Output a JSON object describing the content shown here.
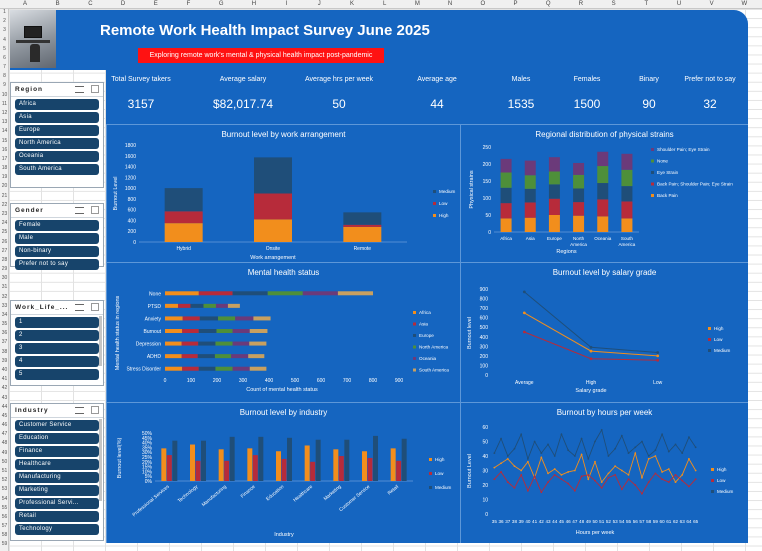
{
  "sheet": {
    "columns": [
      "A",
      "B",
      "C",
      "D",
      "E",
      "F",
      "G",
      "H",
      "I",
      "J",
      "K",
      "L",
      "M",
      "N",
      "O",
      "P",
      "Q",
      "R",
      "S",
      "T",
      "U",
      "V",
      "W"
    ]
  },
  "header": {
    "title": "Remote Work Health Impact Survey June 2025",
    "subtitle": "Exploring remote work's mental & physical health impact post-pandemic"
  },
  "kpis": [
    {
      "label": "Total Survey takers",
      "value": "3157"
    },
    {
      "label": "Average salary",
      "value": "$82,017.74"
    },
    {
      "label": "Average hrs per week",
      "value": "50"
    },
    {
      "label": "Average age",
      "value": "44"
    },
    {
      "label": "Males",
      "value": "1535"
    },
    {
      "label": "Females",
      "value": "1500"
    },
    {
      "label": "Binary",
      "value": "90"
    },
    {
      "label": "Prefer not to say",
      "value": "32"
    }
  ],
  "slicers": [
    {
      "title": "Region",
      "items": [
        "Africa",
        "Asia",
        "Europe",
        "North America",
        "Oceania",
        "South America"
      ]
    },
    {
      "title": "Gender",
      "items": [
        "Female",
        "Male",
        "Non-binary",
        "Prefer not to say"
      ]
    },
    {
      "title": "Work_Life_...",
      "items": [
        "1",
        "2",
        "3",
        "4",
        "5"
      ]
    },
    {
      "title": "Industry",
      "items": [
        "Customer Service",
        "Education",
        "Finance",
        "Healthcare",
        "Manufacturing",
        "Marketing",
        "Professional Servi...",
        "Retail",
        "Technology"
      ]
    }
  ],
  "colors": {
    "high": "#f28e1c",
    "low": "#b72b3a",
    "medium": "#1f4e79",
    "bg": "#1565c0",
    "banner_tag": "#ff1212"
  },
  "chart_data": [
    {
      "id": "burnout_arrangement",
      "type": "bar",
      "title": "Burnout level by work arrangement",
      "xlabel": "Work arrangement",
      "ylabel": "Burnout Level",
      "categories": [
        "Hybrid",
        "Onsite",
        "Remote"
      ],
      "series": [
        {
          "name": "High",
          "values": [
            350,
            420,
            280
          ]
        },
        {
          "name": "Low",
          "values": [
            220,
            480,
            40
          ]
        },
        {
          "name": "Medium",
          "values": [
            430,
            670,
            230
          ]
        }
      ],
      "ylim": [
        0,
        1800
      ],
      "yticks": [
        "0",
        "200",
        "400",
        "600",
        "800",
        "1000",
        "1200",
        "1400",
        "1600",
        "1800"
      ],
      "stacked": true,
      "legend": "right"
    },
    {
      "id": "regional_strains",
      "type": "bar",
      "title": "Regional distribution of physical strains",
      "xlabel": "Regions",
      "ylabel": "Physical strains",
      "categories": [
        "Africa",
        "Asia",
        "Europe",
        "North America",
        "Oceania",
        "South America"
      ],
      "series": [
        {
          "name": "Back Pain",
          "values": [
            40,
            42,
            50,
            48,
            46,
            40
          ],
          "color": "#f28e1c"
        },
        {
          "name": "Back Pain; Shoulder Pain; Eye Strain",
          "values": [
            45,
            45,
            48,
            40,
            50,
            50
          ],
          "color": "#b72b3a"
        },
        {
          "name": "Eye Strain",
          "values": [
            45,
            40,
            42,
            40,
            48,
            45
          ],
          "color": "#1f4e79"
        },
        {
          "name": "None",
          "values": [
            45,
            40,
            38,
            40,
            50,
            48
          ],
          "color": "#4e8f3a"
        },
        {
          "name": "Shoulder Pain; Eye Strain",
          "values": [
            40,
            43,
            42,
            35,
            42,
            47
          ],
          "color": "#6b3a7a"
        }
      ],
      "ylim": [
        0,
        250
      ],
      "yticks": [
        "0",
        "50",
        "100",
        "150",
        "200",
        "250"
      ],
      "stacked": true,
      "legend": "right",
      "legend_order": [
        "Shoulder Pain; Eye Strain",
        "None",
        "Eye Strain",
        "Back Pain; Shoulder Pain; Eye Strain",
        "Back Pain"
      ]
    },
    {
      "id": "mental_health",
      "type": "bar",
      "title": "Mental health status",
      "xlabel": "Count of mental health status",
      "ylabel": "Mental health status in regions",
      "categories": [
        "None",
        "PTSD",
        "Anxiety",
        "Burnout",
        "Depression",
        "ADHD",
        "Stress Disorder"
      ],
      "series": [
        {
          "name": "Africa",
          "values": [
            130,
            50,
            68,
            66,
            64,
            64,
            66
          ],
          "color": "#f28e1c"
        },
        {
          "name": "Asia",
          "values": [
            130,
            48,
            66,
            64,
            64,
            62,
            64
          ],
          "color": "#b72b3a"
        },
        {
          "name": "Europe",
          "values": [
            135,
            50,
            70,
            68,
            66,
            66,
            64
          ],
          "color": "#1f4e79"
        },
        {
          "name": "North America",
          "values": [
            135,
            48,
            66,
            62,
            66,
            62,
            66
          ],
          "color": "#4e8f3a"
        },
        {
          "name": "Oceania",
          "values": [
            135,
            46,
            70,
            66,
            64,
            66,
            66
          ],
          "color": "#6b3a7a"
        },
        {
          "name": "South America",
          "values": [
            135,
            46,
            66,
            68,
            66,
            62,
            64
          ],
          "color": "#c8a060"
        }
      ],
      "xlim": [
        0,
        900
      ],
      "xticks": [
        "0",
        "100",
        "200",
        "300",
        "400",
        "500",
        "600",
        "700",
        "800",
        "900"
      ],
      "stacked": true,
      "horizontal": true,
      "legend": "right"
    },
    {
      "id": "burnout_salary",
      "type": "line",
      "title": "Burnout level by salary grade",
      "xlabel": "Salary grade",
      "ylabel": "Burnout level",
      "categories": [
        "Average",
        "High",
        "Low"
      ],
      "series": [
        {
          "name": "High",
          "values": [
            650,
            250,
            200
          ],
          "color": "#f28e1c"
        },
        {
          "name": "Low",
          "values": [
            450,
            170,
            155
          ],
          "color": "#b72b3a"
        },
        {
          "name": "Medium",
          "values": [
            870,
            290,
            235
          ],
          "color": "#1f4e79"
        }
      ],
      "ylim": [
        0,
        900
      ],
      "yticks": [
        "0",
        "100",
        "200",
        "300",
        "400",
        "500",
        "600",
        "700",
        "800",
        "900"
      ],
      "legend": "right"
    },
    {
      "id": "burnout_industry",
      "type": "bar",
      "title": "Burnout level by industry",
      "xlabel": "Industry",
      "ylabel": "Burnout level(%)",
      "categories": [
        "Professional Services",
        "Technology",
        "Manufacturing",
        "Finance",
        "Education",
        "Healthcare",
        "Marketing",
        "Customer Service",
        "Retail"
      ],
      "series": [
        {
          "name": "High",
          "values": [
            34,
            38,
            33,
            34,
            31,
            37,
            33,
            31,
            34
          ],
          "color": "#f28e1c"
        },
        {
          "name": "Low",
          "values": [
            27,
            21,
            21,
            27,
            23,
            20,
            26,
            24,
            21
          ],
          "color": "#b72b3a"
        },
        {
          "name": "Medium",
          "values": [
            42,
            42,
            46,
            46,
            45,
            43,
            43,
            47,
            44
          ],
          "color": "#1f4e79"
        }
      ],
      "ylim": [
        0,
        50
      ],
      "yticks": [
        "0%",
        "5%",
        "10%",
        "15%",
        "20%",
        "25%",
        "30%",
        "35%",
        "40%",
        "45%",
        "50%"
      ],
      "legend": "right"
    },
    {
      "id": "burnout_hours",
      "type": "line",
      "title": "Burnout by hours per week",
      "xlabel": "Hours per week",
      "ylabel": "Burnout Level",
      "categories": [
        "35",
        "36",
        "37",
        "38",
        "39",
        "40",
        "41",
        "42",
        "43",
        "44",
        "45",
        "46",
        "47",
        "48",
        "49",
        "50",
        "51",
        "52",
        "53",
        "54",
        "55",
        "56",
        "57",
        "58",
        "59",
        "60",
        "61",
        "62",
        "63",
        "64",
        "65"
      ],
      "series": [
        {
          "name": "High",
          "values": [
            32,
            35,
            38,
            33,
            30,
            36,
            25,
            39,
            28,
            31,
            27,
            29,
            30,
            41,
            24,
            36,
            22,
            28,
            33,
            30,
            27,
            42,
            25,
            38,
            40,
            29,
            31,
            22,
            27,
            38,
            30
          ],
          "color": "#f28e1c"
        },
        {
          "name": "Low",
          "values": [
            24,
            29,
            22,
            18,
            27,
            16,
            26,
            15,
            22,
            27,
            24,
            21,
            16,
            26,
            27,
            23,
            18,
            25,
            27,
            17,
            24,
            20,
            14,
            22,
            28,
            24,
            22,
            27,
            23,
            19,
            24
          ],
          "color": "#b72b3a"
        },
        {
          "name": "Medium",
          "values": [
            42,
            52,
            40,
            45,
            55,
            38,
            50,
            42,
            48,
            40,
            55,
            44,
            40,
            52,
            38,
            50,
            58,
            40,
            45,
            54,
            42,
            46,
            50,
            40,
            44,
            55,
            43,
            48,
            42,
            53,
            46
          ],
          "color": "#1f4e79"
        }
      ],
      "ylim": [
        0,
        60
      ],
      "yticks": [
        "0",
        "10",
        "20",
        "30",
        "40",
        "50",
        "60"
      ],
      "legend": "right"
    }
  ]
}
